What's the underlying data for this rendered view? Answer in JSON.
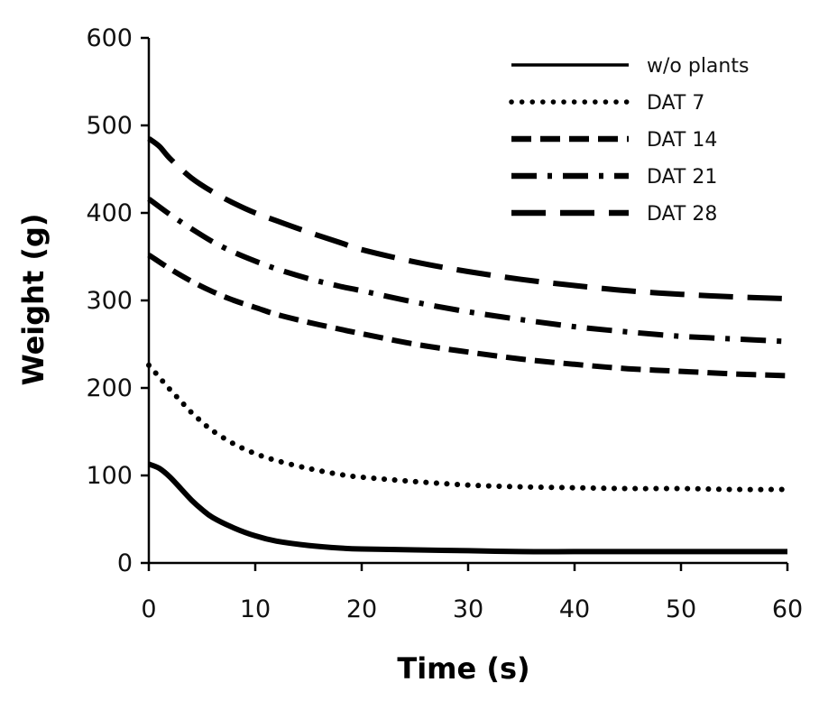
{
  "chart_data": {
    "type": "line",
    "title": "",
    "xlabel": "Time (s)",
    "ylabel": "Weight (g)",
    "xlim": [
      0,
      60
    ],
    "ylim": [
      0,
      600
    ],
    "xticks": [
      0,
      10,
      20,
      30,
      40,
      50,
      60
    ],
    "yticks": [
      0,
      100,
      200,
      300,
      400,
      500,
      600
    ],
    "grid": false,
    "legend_position": "top-right",
    "series": [
      {
        "name": "w/o plants",
        "style": "solid",
        "x": [
          0,
          1,
          2,
          3,
          4,
          5,
          6,
          8,
          10,
          12,
          15,
          18,
          20,
          25,
          30,
          35,
          40,
          45,
          50,
          55,
          60
        ],
        "y": [
          113,
          108,
          98,
          85,
          72,
          61,
          52,
          40,
          31,
          25,
          20,
          17,
          16,
          15,
          14,
          13,
          13,
          13,
          13,
          13,
          13
        ]
      },
      {
        "name": "DAT 7",
        "style": "dotted",
        "x": [
          0,
          1,
          2,
          3,
          4,
          5,
          6,
          8,
          10,
          12,
          15,
          18,
          20,
          25,
          30,
          35,
          40,
          45,
          50,
          55,
          60
        ],
        "y": [
          226,
          212,
          198,
          185,
          172,
          161,
          151,
          136,
          125,
          117,
          108,
          101,
          98,
          93,
          89,
          87,
          86,
          85,
          85,
          84,
          84
        ]
      },
      {
        "name": "DAT 14",
        "style": "dashed",
        "x": [
          0,
          2,
          4,
          6,
          8,
          10,
          12,
          15,
          18,
          20,
          25,
          30,
          35,
          40,
          45,
          50,
          55,
          60
        ],
        "y": [
          352,
          336,
          322,
          310,
          300,
          292,
          284,
          275,
          267,
          262,
          250,
          241,
          233,
          227,
          222,
          219,
          216,
          214
        ]
      },
      {
        "name": "DAT 21",
        "style": "dash-dot",
        "x": [
          0,
          2,
          4,
          6,
          8,
          10,
          12,
          15,
          18,
          20,
          25,
          30,
          35,
          40,
          45,
          50,
          55,
          60
        ],
        "y": [
          416,
          398,
          382,
          367,
          355,
          345,
          336,
          325,
          316,
          311,
          298,
          287,
          278,
          270,
          264,
          259,
          256,
          253
        ]
      },
      {
        "name": "DAT 28",
        "style": "long-dash",
        "x": [
          0,
          1,
          2,
          4,
          6,
          8,
          10,
          12,
          15,
          18,
          20,
          25,
          30,
          35,
          40,
          45,
          50,
          55,
          60
        ],
        "y": [
          485,
          476,
          462,
          440,
          424,
          411,
          400,
          391,
          378,
          366,
          358,
          344,
          333,
          324,
          317,
          311,
          307,
          304,
          302
        ]
      }
    ]
  }
}
